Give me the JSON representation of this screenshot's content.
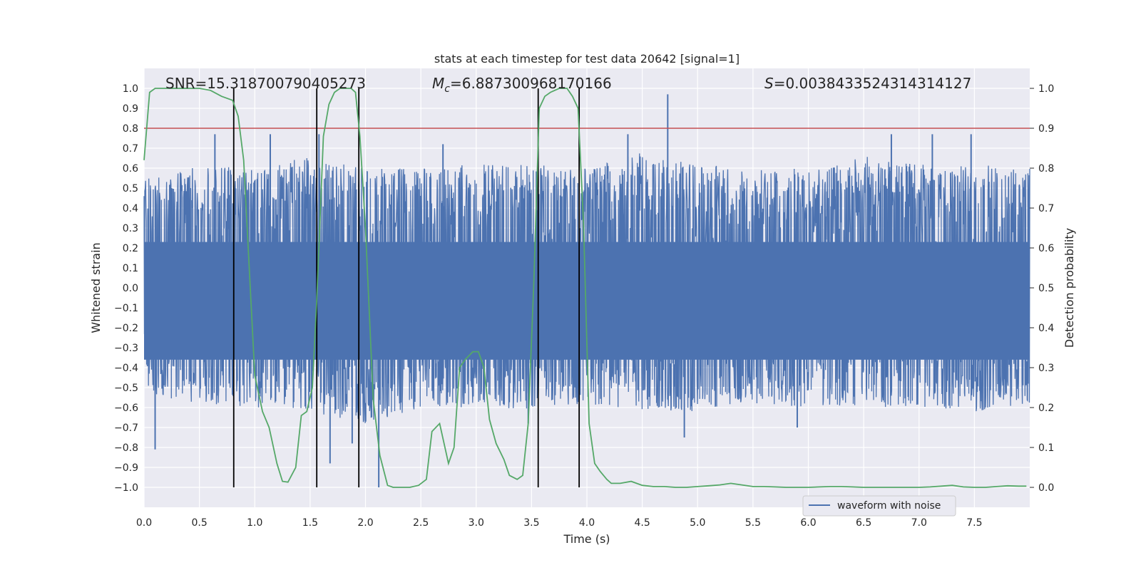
{
  "chart_data": {
    "type": "line",
    "title": "stats at each timestep for test data 20642 [signal=1]",
    "xlabel": "Time (s)",
    "ylabel_left": "Whitened strain",
    "ylabel_right": "Detection probability",
    "xlim": [
      0,
      8
    ],
    "ylim_left": [
      -1.1,
      1.1
    ],
    "ylim_right": [
      -0.05,
      1.05
    ],
    "xticks": [
      0,
      0.5,
      1,
      1.5,
      2,
      2.5,
      3,
      3.5,
      4,
      4.5,
      5,
      5.5,
      6,
      6.5,
      7,
      7.5
    ],
    "xtick_labels": [
      "0.0",
      "0.5",
      "1.0",
      "1.5",
      "2.0",
      "2.5",
      "3.0",
      "3.5",
      "4.0",
      "4.5",
      "5.0",
      "5.5",
      "6.0",
      "6.5",
      "7.0",
      "7.5"
    ],
    "yticks_left": [
      1.0,
      0.9,
      0.8,
      0.7,
      0.6,
      0.5,
      0.4,
      0.3,
      0.2,
      0.1,
      0.0,
      -0.1,
      -0.2,
      -0.3,
      -0.4,
      -0.5,
      -0.6,
      -0.7,
      -0.8,
      -0.9,
      -1.0
    ],
    "ytick_labels_left": [
      "1.0",
      "0.9",
      "0.8",
      "0.7",
      "0.6",
      "0.5",
      "0.4",
      "0.3",
      "0.2",
      "0.1",
      "0.0",
      "−0.1",
      "−0.2",
      "−0.3",
      "−0.4",
      "−0.5",
      "−0.6",
      "−0.7",
      "−0.8",
      "−0.9",
      "−1.0"
    ],
    "yticks_right": [
      1.0,
      0.9,
      0.8,
      0.7,
      0.6,
      0.5,
      0.4,
      0.3,
      0.2,
      0.1,
      0.0
    ],
    "ytick_labels_right": [
      "1.0",
      "0.9",
      "0.8",
      "0.7",
      "0.6",
      "0.5",
      "0.4",
      "0.3",
      "0.2",
      "0.1",
      "0.0"
    ],
    "annotations": {
      "snr": "SNR=15.318700790405273",
      "mc_symbol": "M",
      "mc_sub": "c",
      "mc_value": "=6.887300968170166",
      "s_symbol": "S",
      "s_value": "=0.0038433524314314127"
    },
    "threshold": {
      "value": 0.9,
      "axis": "right",
      "color": "#c44e52"
    },
    "vertical_lines": [
      0.81,
      1.56,
      1.94,
      3.56,
      3.93
    ],
    "legend": [
      {
        "label": "waveform with noise",
        "color": "#4c72b0"
      }
    ],
    "legend_position": "lower-right",
    "series": [
      {
        "name": "waveform with noise",
        "axis": "left",
        "color": "#4c72b0",
        "kind": "noise",
        "envelope_x": [
          0,
          0.5,
          1,
          1.5,
          2,
          2.5,
          3,
          3.5,
          4,
          4.5,
          5,
          5.5,
          6,
          6.5,
          7,
          7.5,
          8
        ],
        "envelope_upper": [
          0.55,
          0.62,
          0.6,
          0.66,
          0.6,
          0.6,
          0.62,
          0.62,
          0.6,
          0.68,
          0.62,
          0.6,
          0.6,
          0.66,
          0.62,
          0.62,
          0.6
        ],
        "envelope_lower": [
          -0.55,
          -0.58,
          -0.6,
          -0.62,
          -0.68,
          -0.6,
          -0.6,
          -0.62,
          -0.58,
          -0.62,
          -0.62,
          -0.58,
          -0.6,
          -0.6,
          -0.6,
          -0.62,
          -0.58
        ],
        "spikes": [
          {
            "x": 0.1,
            "y": -0.81
          },
          {
            "x": 0.64,
            "y": 0.77
          },
          {
            "x": 1.14,
            "y": 0.77
          },
          {
            "x": 1.58,
            "y": 0.77
          },
          {
            "x": 1.68,
            "y": -0.88
          },
          {
            "x": 1.88,
            "y": -0.78
          },
          {
            "x": 2.12,
            "y": -1.0
          },
          {
            "x": 2.7,
            "y": 0.72
          },
          {
            "x": 4.73,
            "y": 0.97
          },
          {
            "x": 4.88,
            "y": -0.75
          },
          {
            "x": 5.9,
            "y": -0.7
          },
          {
            "x": 6.75,
            "y": 0.77
          },
          {
            "x": 7.12,
            "y": 0.77
          },
          {
            "x": 7.47,
            "y": 0.77
          },
          {
            "x": 4.37,
            "y": 0.77
          },
          {
            "x": 3.47,
            "y": -0.68
          }
        ]
      },
      {
        "name": "detection probability",
        "axis": "right",
        "color": "#55a868",
        "x": [
          0,
          0.05,
          0.1,
          0.2,
          0.3,
          0.4,
          0.5,
          0.6,
          0.7,
          0.8,
          0.85,
          0.9,
          0.95,
          1.0,
          1.07,
          1.13,
          1.2,
          1.25,
          1.3,
          1.37,
          1.42,
          1.47,
          1.52,
          1.56,
          1.62,
          1.67,
          1.72,
          1.77,
          1.82,
          1.87,
          1.91,
          1.95,
          2.0,
          2.07,
          2.13,
          2.2,
          2.25,
          2.33,
          2.4,
          2.48,
          2.55,
          2.6,
          2.67,
          2.75,
          2.8,
          2.85,
          2.9,
          2.97,
          3.02,
          3.07,
          3.12,
          3.18,
          3.25,
          3.3,
          3.37,
          3.42,
          3.47,
          3.52,
          3.57,
          3.62,
          3.67,
          3.75,
          3.82,
          3.87,
          3.92,
          3.97,
          4.02,
          4.07,
          4.12,
          4.18,
          4.22,
          4.3,
          4.4,
          4.5,
          4.6,
          4.7,
          4.8,
          4.9,
          5.0,
          5.1,
          5.2,
          5.3,
          5.4,
          5.5,
          5.6,
          5.7,
          5.8,
          5.9,
          6.0,
          6.1,
          6.2,
          6.3,
          6.4,
          6.5,
          6.6,
          6.7,
          6.8,
          6.9,
          7.0,
          7.1,
          7.2,
          7.3,
          7.4,
          7.5,
          7.6,
          7.7,
          7.8,
          7.9,
          7.97
        ],
        "y": [
          0.82,
          0.99,
          1.0,
          1.0,
          1.0,
          1.0,
          1.0,
          0.995,
          0.98,
          0.97,
          0.93,
          0.82,
          0.55,
          0.28,
          0.19,
          0.15,
          0.06,
          0.015,
          0.013,
          0.05,
          0.18,
          0.19,
          0.25,
          0.47,
          0.88,
          0.96,
          0.99,
          1.0,
          1.0,
          1.0,
          0.99,
          0.88,
          0.65,
          0.22,
          0.08,
          0.005,
          0.0,
          0.0,
          0.0,
          0.005,
          0.02,
          0.14,
          0.16,
          0.06,
          0.1,
          0.3,
          0.32,
          0.34,
          0.34,
          0.3,
          0.17,
          0.11,
          0.07,
          0.03,
          0.02,
          0.03,
          0.16,
          0.51,
          0.95,
          0.98,
          0.99,
          1.0,
          1.0,
          0.98,
          0.95,
          0.66,
          0.16,
          0.06,
          0.04,
          0.02,
          0.01,
          0.01,
          0.015,
          0.005,
          0.002,
          0.002,
          0.0,
          0.0,
          0.002,
          0.004,
          0.006,
          0.01,
          0.006,
          0.002,
          0.002,
          0.001,
          0.0,
          0.0,
          0.0,
          0.001,
          0.002,
          0.002,
          0.001,
          0.0,
          0.0,
          0.0,
          0.0,
          0.0,
          0.0,
          0.001,
          0.003,
          0.005,
          0.001,
          0.0,
          0.0,
          0.002,
          0.004,
          0.003,
          0.003
        ]
      }
    ]
  }
}
